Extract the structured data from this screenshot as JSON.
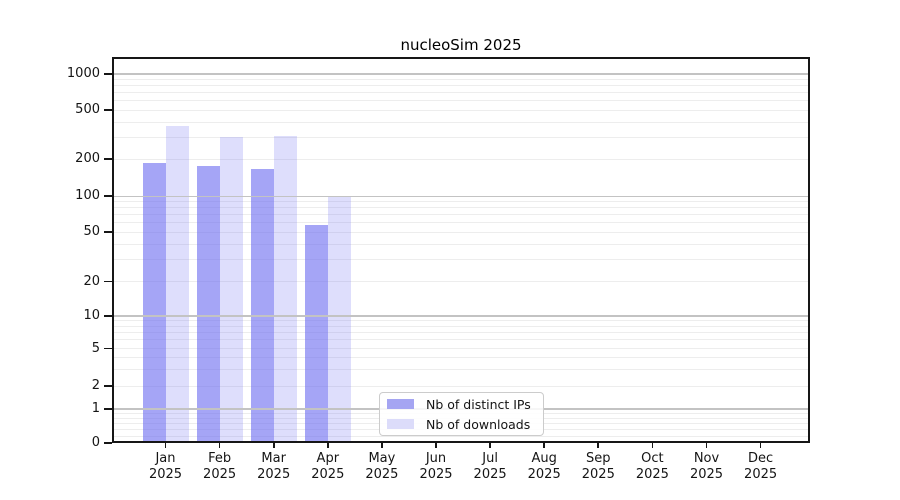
{
  "chart_data": {
    "type": "bar",
    "title": "nucleoSim 2025",
    "categories": [
      "Jan 2025",
      "Feb 2025",
      "Mar 2025",
      "Apr 2025",
      "May 2025",
      "Jun 2025",
      "Jul 2025",
      "Aug 2025",
      "Sep 2025",
      "Oct 2025",
      "Nov 2025",
      "Dec 2025"
    ],
    "series": [
      {
        "name": "Nb of distinct IPs",
        "color": "rgba(105,105,240,0.60)",
        "color_on_white": "#a5a5f2",
        "values": [
          185,
          175,
          167,
          57,
          null,
          null,
          null,
          null,
          null,
          null,
          null,
          null
        ]
      },
      {
        "name": "Nb of downloads",
        "color": "rgba(105,105,240,0.22)",
        "color_on_white": "#dcdcfa",
        "values": [
          370,
          300,
          310,
          100,
          null,
          null,
          null,
          null,
          null,
          null,
          null,
          null
        ]
      }
    ],
    "yscale": "symlog",
    "y_ticks": [
      0,
      1,
      2,
      5,
      10,
      20,
      50,
      100,
      200,
      500,
      1000
    ],
    "ylim": [
      0,
      1380
    ],
    "grid": true,
    "grid_major_color": "#c3c3c3",
    "grid_minor_color": "#ededed",
    "legend_position": "lower-center",
    "axis_color": "#161616"
  }
}
